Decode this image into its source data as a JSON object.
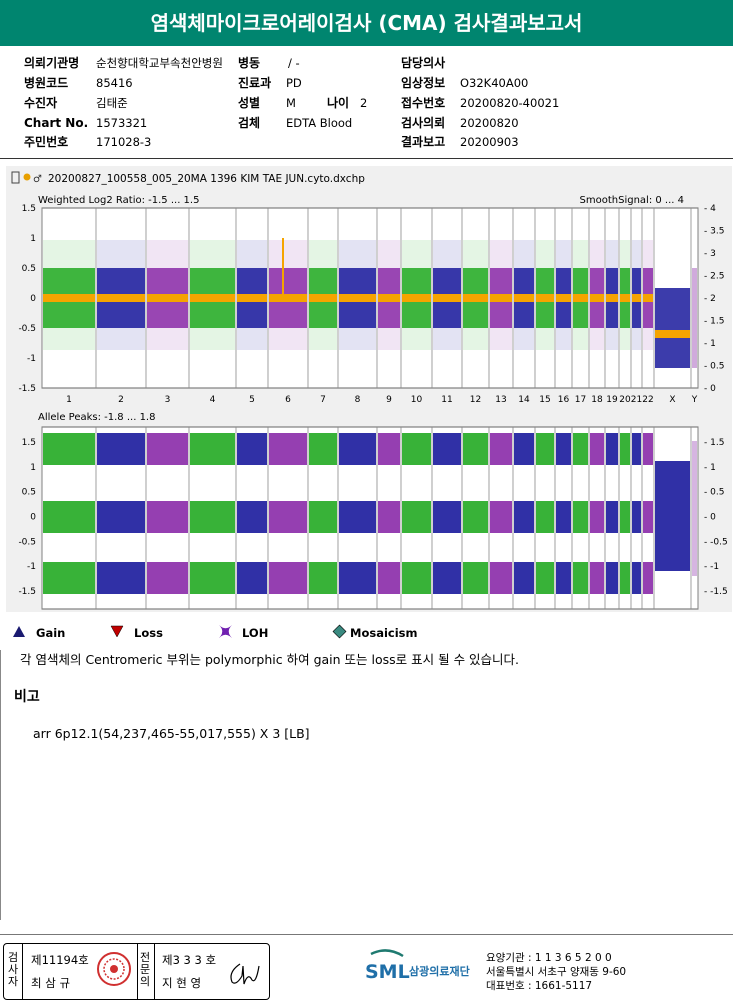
{
  "title": "염색체마이크로어레이검사 (CMA) 검사결과보고서",
  "info": {
    "institution_label": "의뢰기관명",
    "institution_value": "순천향대학교부속천안병원",
    "ward_label": "병동",
    "ward_value": "/ -",
    "doctor_label": "담당의사",
    "doctor_value": "",
    "hospital_code_label": "병원코드",
    "hospital_code_value": "85416",
    "department_label": "진료과",
    "department_value": "PD",
    "clinical_label": "임상정보",
    "clinical_value": "O32K40A00",
    "patient_label": "수진자",
    "patient_value": "김태준",
    "sex_label": "성별",
    "sex_value": "M",
    "age_label": "나이",
    "age_value": "2",
    "accession_label": "접수번호",
    "accession_value": "20200820-40021",
    "chart_label": "Chart No.",
    "chart_value": "1573321",
    "specimen_label": "검체",
    "specimen_value": "EDTA Blood",
    "request_label": "검사의뢰",
    "request_value": "20200820",
    "id_label": "주민번호",
    "id_value": "171028-3",
    "report_label": "결과보고",
    "report_value": "20200903"
  },
  "plot": {
    "filename": "20200827_100558_005_20MA 1396 KIM TAE JUN.cyto.dxchp",
    "top_label": "Weighted Log2 Ratio: -1.5 ... 1.5",
    "top_right_label": "SmoothSignal: 0 ... 4",
    "bottom_label": "Allele Peaks: -1.8 ... 1.8",
    "top_left_ticks": [
      "1.5",
      "1",
      "0.5",
      "0",
      "-0.5",
      "-1",
      "-1.5"
    ],
    "top_right_ticks": [
      "4",
      "3.5",
      "3",
      "2.5",
      "2",
      "1.5",
      "1",
      "0.5",
      "0"
    ],
    "bottom_right_ticks": [
      "1.5",
      "1",
      "0.5",
      "0",
      "-0.5",
      "-1",
      "-1.5"
    ],
    "chromosomes": [
      "1",
      "2",
      "3",
      "4",
      "5",
      "6",
      "7",
      "8",
      "9",
      "10",
      "11",
      "12",
      "13",
      "14",
      "15",
      "16",
      "17",
      "18",
      "19",
      "20",
      "21",
      "22",
      "X",
      "Y"
    ],
    "colors": {
      "green": "#22aa22",
      "blue": "#1a1a9c",
      "purple": "#8a2aa8",
      "orange": "#f5a400"
    }
  },
  "legend": {
    "gain": "Gain",
    "loss": "Loss",
    "loh": "LOH",
    "mosaicism": "Mosaicism"
  },
  "note": "각 염색체의 Centromeric 부위는 polymorphic 하여 gain 또는 loss로 표시 될 수 있습니다.",
  "remark_heading": "비고",
  "remark": "arr 6p12.1(54,237,465-55,017,555) X 3 [LB]",
  "footer": {
    "v1": "검사자",
    "no1": "제11194호",
    "name1": "최 삼 규",
    "v2": "전문의",
    "no2": "제3 3 3 호",
    "name2": "지 현 영",
    "org_name": "삼광의료재단",
    "sml": "SML",
    "line1": "요양기관 : 1 1 3 6 5 2 0 0",
    "line2": "서울특별시 서초구 양재동 9-60",
    "line3": "대표번호 : 1661-5117"
  }
}
